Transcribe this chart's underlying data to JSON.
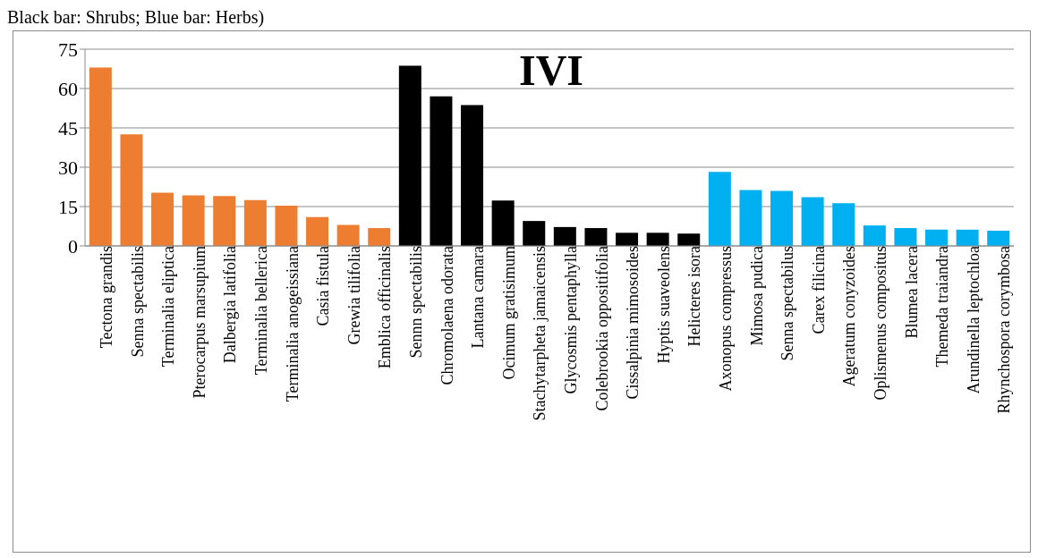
{
  "chart_data": {
    "type": "bar",
    "title": "IVI",
    "subtitle": "Black bar: Shrubs; Blue bar: Herbs)",
    "categories": [
      "Tectona grandis",
      "Senna spectabilis",
      "Terminalia eliptica",
      "Pterocarpus marsupium",
      "Dalbergia latifolia",
      "Terminalia bellerica",
      "Terminalia anogeissiana",
      "Casia fistula",
      "Grewia tilifolia",
      "Emblica officinalis",
      "Sennn spectabilis",
      "Chromolaena odorata",
      "Lantana camara",
      "Ocimum gratisimum",
      "Stachytarpheta jamaicensis",
      "Glycosmis pentaphylla",
      "Colebrookia oppositifolia",
      "Cissalpinia mimosoides",
      "Hyptis suaveolens",
      "Helicteres isora",
      "Axonopus compressus",
      "Mimosa pudica",
      "Senna spectabilus",
      "Carex filicina",
      "Ageratum conyzoides",
      "Oplismenus compositus",
      "Blumea lacera",
      "Themeda traiandra",
      "Arundinella leptochloa",
      "Rhynchospora corymbosa"
    ],
    "values": [
      68,
      42.5,
      20.3,
      19.3,
      19,
      17.5,
      15.3,
      11,
      8,
      6.8,
      68.7,
      57,
      53.7,
      17.3,
      9.5,
      7.2,
      6.8,
      5,
      5,
      4.7,
      28.2,
      21.3,
      21,
      18.6,
      16.3,
      7.8,
      6.8,
      6.2,
      6.2,
      5.8
    ],
    "colors": [
      "#ed7d31",
      "#ed7d31",
      "#ed7d31",
      "#ed7d31",
      "#ed7d31",
      "#ed7d31",
      "#ed7d31",
      "#ed7d31",
      "#ed7d31",
      "#ed7d31",
      "#000000",
      "#000000",
      "#000000",
      "#000000",
      "#000000",
      "#000000",
      "#000000",
      "#000000",
      "#000000",
      "#000000",
      "#00b0f0",
      "#00b0f0",
      "#00b0f0",
      "#00b0f0",
      "#00b0f0",
      "#00b0f0",
      "#00b0f0",
      "#00b0f0",
      "#00b0f0",
      "#00b0f0"
    ],
    "ylim": [
      0,
      75
    ],
    "yticks": [
      0,
      15,
      30,
      45,
      60,
      75
    ],
    "grid": "y"
  }
}
